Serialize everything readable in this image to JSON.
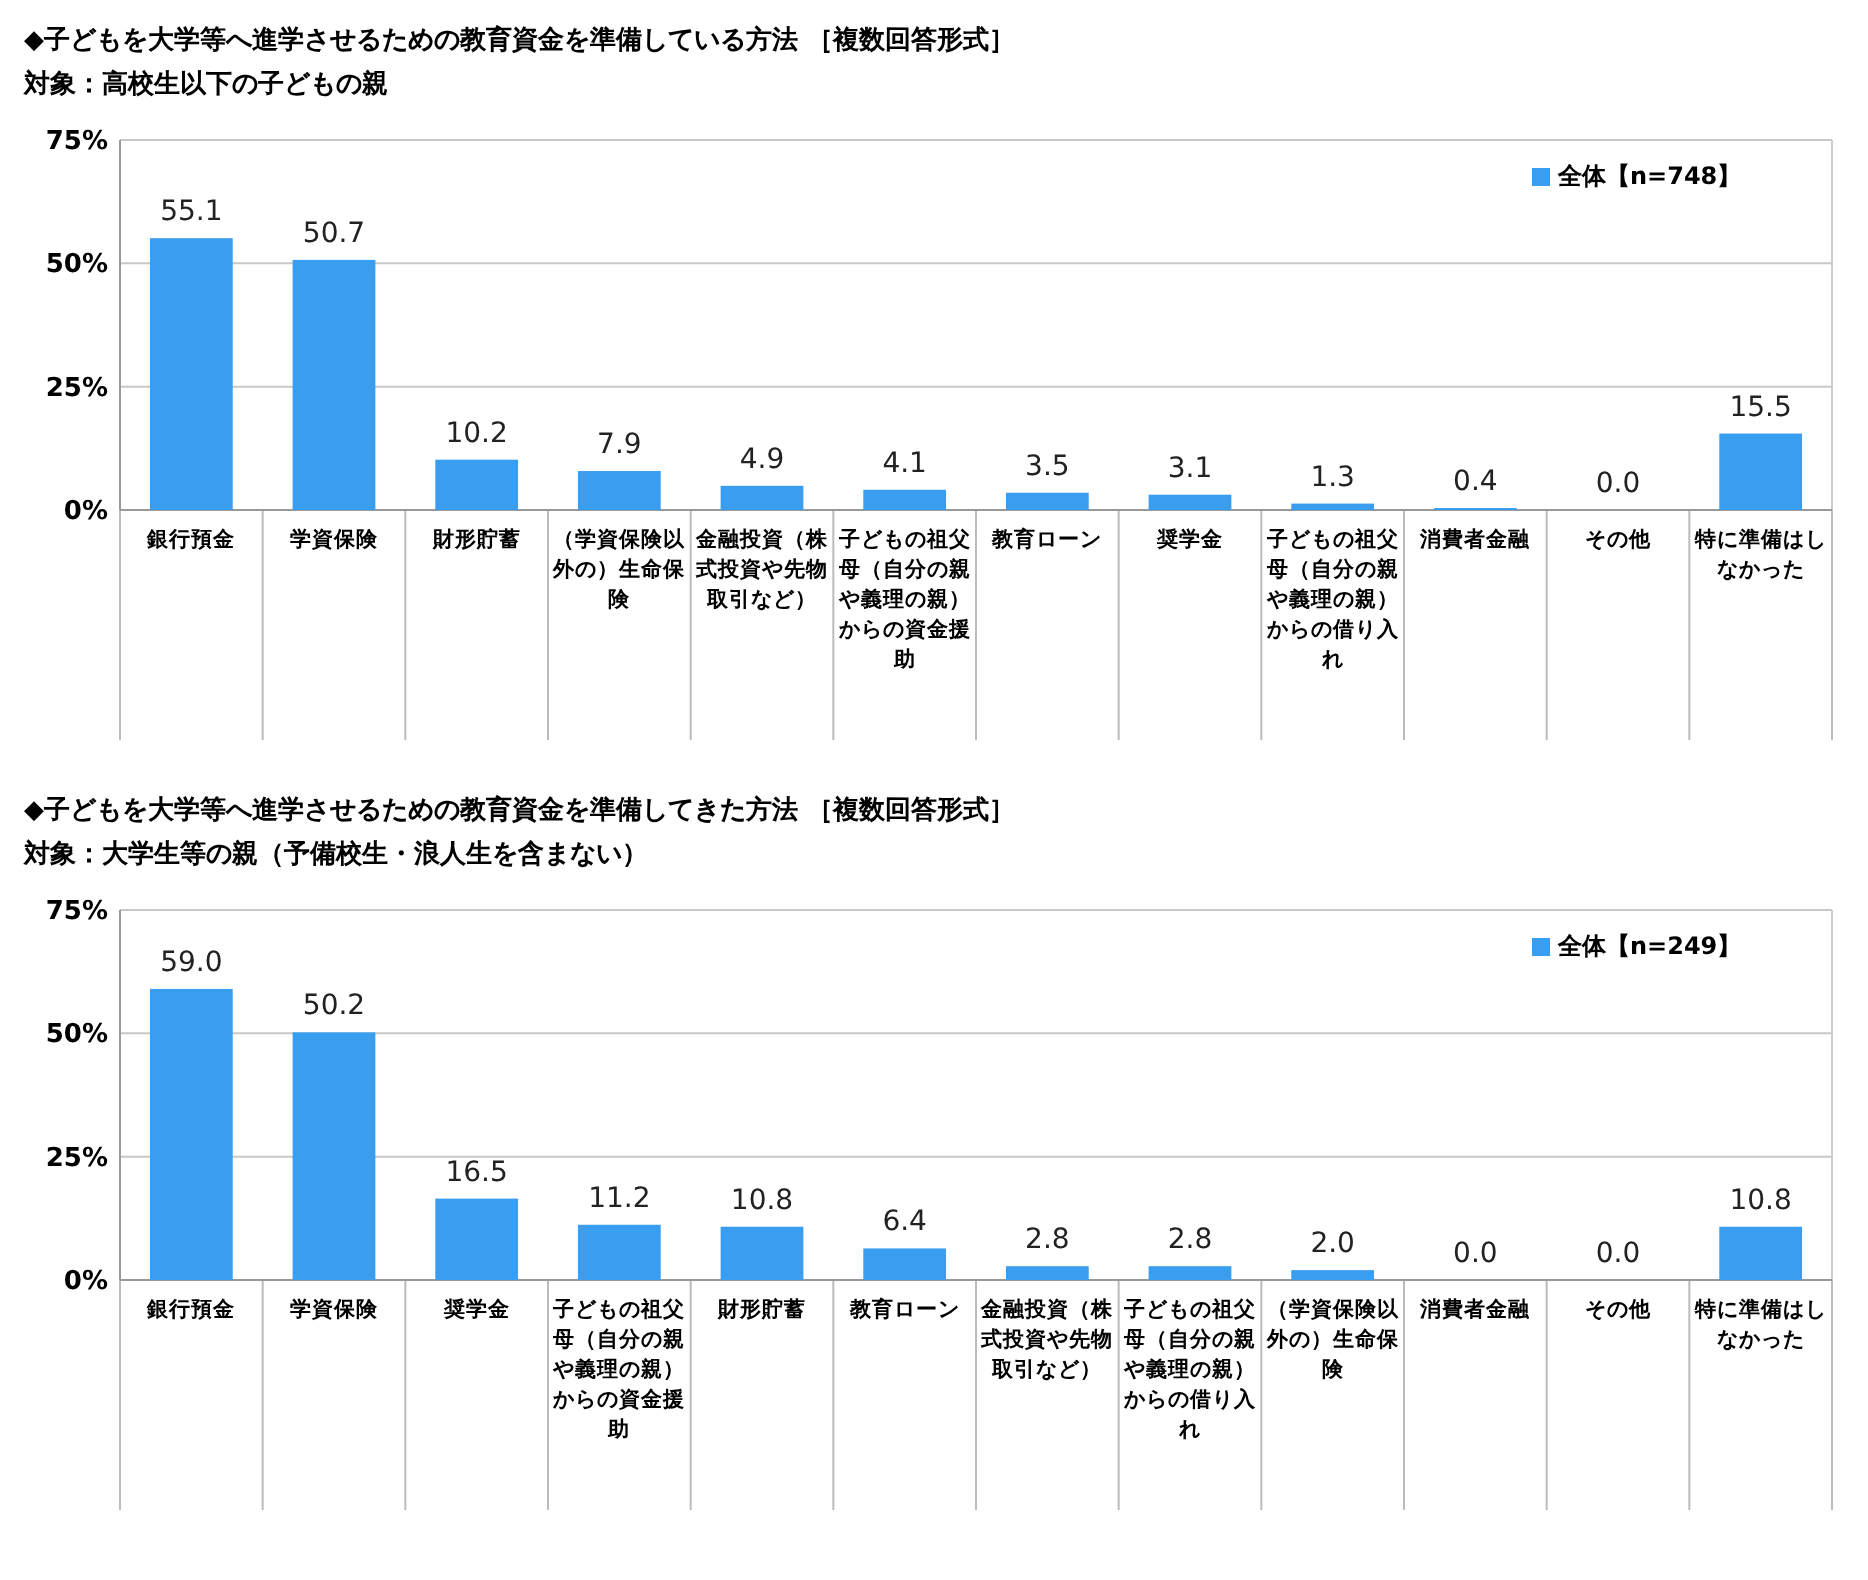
{
  "chart_data": [
    {
      "type": "bar",
      "title": "◆子どもを大学等へ進学させるための教育資金を準備している方法 ［複数回答形式］",
      "subtitle": "対象：高校生以下の子どもの親",
      "categories": [
        "銀行預金",
        "学資保険",
        "財形貯蓄",
        "（学資保険以外の）生命保険",
        "金融投資（株式投資や先物取引など）",
        "子どもの祖父母（自分の親や義理の親）からの資金援助",
        "教育ローン",
        "奨学金",
        "子どもの祖父母（自分の親や義理の親）からの借り入れ",
        "消費者金融",
        "その他",
        "特に準備はしなかった"
      ],
      "series": [
        {
          "name": "全体【n=748】",
          "color": "#3a9ef0",
          "values": [
            55.1,
            50.7,
            10.2,
            7.9,
            4.9,
            4.1,
            3.5,
            3.1,
            1.3,
            0.4,
            0,
            15.5
          ],
          "value_labels": [
            "55.1",
            "50.7",
            "10.2",
            "7.9",
            "4.9",
            "4.1",
            "3.5",
            "3.1",
            "1.3",
            "0.4",
            "0.0",
            "15.5"
          ]
        }
      ],
      "ylim": [
        0,
        75
      ],
      "yticks": [
        {
          "value": 0,
          "label": "0%"
        },
        {
          "value": 25,
          "label": "25%"
        },
        {
          "value": 50,
          "label": "50%"
        },
        {
          "value": 75,
          "label": "75%"
        }
      ],
      "grid": "y",
      "legend": "top right"
    },
    {
      "type": "bar",
      "title": "◆子どもを大学等へ進学させるための教育資金を準備してきた方法 ［複数回答形式］",
      "subtitle": "対象：大学生等の親（予備校生・浪人生を含まない）",
      "categories": [
        "銀行預金",
        "学資保険",
        "奨学金",
        "子どもの祖父母（自分の親や義理の親）からの資金援助",
        "財形貯蓄",
        "教育ローン",
        "金融投資（株式投資や先物取引など）",
        "子どもの祖父母（自分の親や義理の親）からの借り入れ",
        "（学資保険以外の）生命保険",
        "消費者金融",
        "その他",
        "特に準備はしなかった"
      ],
      "series": [
        {
          "name": "全体【n=249】",
          "color": "#3a9ef0",
          "values": [
            59.0,
            50.2,
            16.5,
            11.2,
            10.8,
            6.4,
            2.8,
            2.8,
            2.0,
            0,
            0,
            10.8
          ],
          "value_labels": [
            "59.0",
            "50.2",
            "16.5",
            "11.2",
            "10.8",
            "6.4",
            "2.8",
            "2.8",
            "2.0",
            "0.0",
            "0.0",
            "10.8"
          ]
        }
      ],
      "ylim": [
        0,
        75
      ],
      "yticks": [
        {
          "value": 0,
          "label": "0%"
        },
        {
          "value": 25,
          "label": "25%"
        },
        {
          "value": 50,
          "label": "50%"
        },
        {
          "value": 75,
          "label": "75%"
        }
      ],
      "grid": "y",
      "legend": "top right"
    }
  ]
}
